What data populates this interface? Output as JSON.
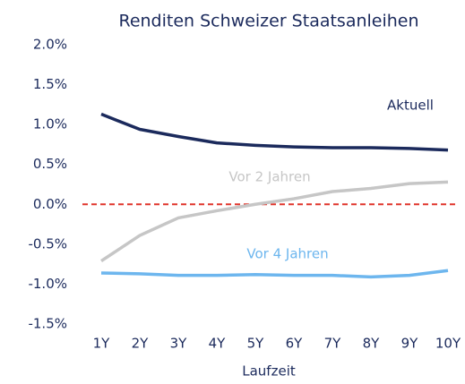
{
  "chart_data": {
    "type": "line",
    "title": "Renditen Schweizer Staatsanleihen",
    "x_label": "Laufzeit",
    "categories": [
      "1Y",
      "2Y",
      "3Y",
      "4Y",
      "5Y",
      "6Y",
      "7Y",
      "8Y",
      "9Y",
      "10Y"
    ],
    "series": [
      {
        "name": "Aktuell",
        "color": "#1b2a5c",
        "values": [
          1.13,
          0.94,
          0.85,
          0.77,
          0.74,
          0.72,
          0.71,
          0.71,
          0.7,
          0.68
        ]
      },
      {
        "name": "Vor 2 Jahren",
        "color": "#c6c6c6",
        "values": [
          -0.71,
          -0.39,
          -0.17,
          -0.08,
          0.0,
          0.07,
          0.16,
          0.2,
          0.26,
          0.28
        ]
      },
      {
        "name": "Vor 4 Jahren",
        "color": "#6db6ee",
        "values": [
          -0.86,
          -0.87,
          -0.89,
          -0.89,
          -0.88,
          -0.89,
          -0.89,
          -0.91,
          -0.89,
          -0.83
        ]
      }
    ],
    "ylim": [
      -1.5,
      2.0
    ],
    "yticks": [
      {
        "value": -1.5,
        "label": "-1.5%"
      },
      {
        "value": -1.0,
        "label": "-1.0%"
      },
      {
        "value": -0.5,
        "label": "-0.5%"
      },
      {
        "value": 0,
        "label": "0.0%"
      },
      {
        "value": 0.5,
        "label": "0.5%"
      },
      {
        "value": 1.0,
        "label": "1.0%"
      },
      {
        "value": 1.5,
        "label": "1.5%"
      },
      {
        "value": 2.0,
        "label": "2.0%"
      }
    ],
    "reference_line": {
      "value": 0,
      "color": "#e0352b"
    },
    "grid": false
  }
}
